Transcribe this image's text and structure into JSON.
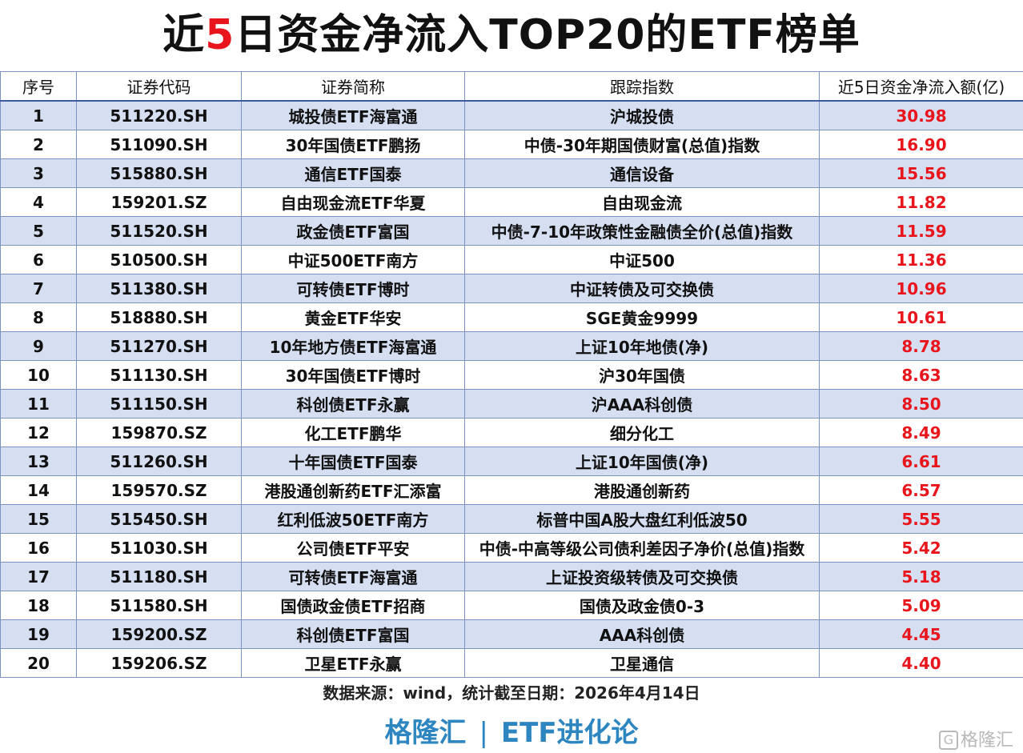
{
  "title": {
    "pre": "近",
    "highlight": "5",
    "post": "日资金净流入TOP20的ETF榜单"
  },
  "columns": [
    "序号",
    "证券代码",
    "证券简称",
    "跟踪指数",
    "近5日资金净流入额(亿)"
  ],
  "rows": [
    {
      "no": "1",
      "code": "511220.SH",
      "name": "城投债ETF海富通",
      "index": "沪城投债",
      "value": "30.98"
    },
    {
      "no": "2",
      "code": "511090.SH",
      "name": "30年国债ETF鹏扬",
      "index": "中债-30年期国债财富(总值)指数",
      "value": "16.90"
    },
    {
      "no": "3",
      "code": "515880.SH",
      "name": "通信ETF国泰",
      "index": "通信设备",
      "value": "15.56"
    },
    {
      "no": "4",
      "code": "159201.SZ",
      "name": "自由现金流ETF华夏",
      "index": "自由现金流",
      "value": "11.82"
    },
    {
      "no": "5",
      "code": "511520.SH",
      "name": "政金债ETF富国",
      "index": "中债-7-10年政策性金融债全价(总值)指数",
      "value": "11.59"
    },
    {
      "no": "6",
      "code": "510500.SH",
      "name": "中证500ETF南方",
      "index": "中证500",
      "value": "11.36"
    },
    {
      "no": "7",
      "code": "511380.SH",
      "name": "可转债ETF博时",
      "index": "中证转债及可交换债",
      "value": "10.96"
    },
    {
      "no": "8",
      "code": "518880.SH",
      "name": "黄金ETF华安",
      "index": "SGE黄金9999",
      "value": "10.61"
    },
    {
      "no": "9",
      "code": "511270.SH",
      "name": "10年地方债ETF海富通",
      "index": "上证10年地债(净)",
      "value": "8.78"
    },
    {
      "no": "10",
      "code": "511130.SH",
      "name": "30年国债ETF博时",
      "index": "沪30年国债",
      "value": "8.63"
    },
    {
      "no": "11",
      "code": "511150.SH",
      "name": "科创债ETF永赢",
      "index": "沪AAA科创债",
      "value": "8.50"
    },
    {
      "no": "12",
      "code": "159870.SZ",
      "name": "化工ETF鹏华",
      "index": "细分化工",
      "value": "8.49"
    },
    {
      "no": "13",
      "code": "511260.SH",
      "name": "十年国债ETF国泰",
      "index": "上证10年国债(净)",
      "value": "6.61"
    },
    {
      "no": "14",
      "code": "159570.SZ",
      "name": "港股通创新药ETF汇添富",
      "index": "港股通创新药",
      "value": "6.57"
    },
    {
      "no": "15",
      "code": "515450.SH",
      "name": "红利低波50ETF南方",
      "index": "标普中国A股大盘红利低波50",
      "value": "5.55"
    },
    {
      "no": "16",
      "code": "511030.SH",
      "name": "公司债ETF平安",
      "index": "中债-中高等级公司债利差因子净价(总值)指数",
      "value": "5.42"
    },
    {
      "no": "17",
      "code": "511180.SH",
      "name": "可转债ETF海富通",
      "index": "上证投资级转债及可交换债",
      "value": "5.18"
    },
    {
      "no": "18",
      "code": "511580.SH",
      "name": "国债政金债ETF招商",
      "index": "国债及政金债0-3",
      "value": "5.09"
    },
    {
      "no": "19",
      "code": "159200.SZ",
      "name": "科创债ETF富国",
      "index": "AAA科创债",
      "value": "4.45"
    },
    {
      "no": "20",
      "code": "159206.SZ",
      "name": "卫星ETF永赢",
      "index": "卫星通信",
      "value": "4.40"
    }
  ],
  "source": "数据来源：wind，统计截至日期：2026年4月14日",
  "brand": {
    "left": "格隆汇",
    "separator": "|",
    "right": "ETF进化论"
  },
  "watermark": {
    "icon": "G",
    "text": "格隆汇"
  },
  "colors": {
    "highlight": "#e8161c",
    "stripe": "#d6dff2",
    "brand": "#2e86c1"
  }
}
